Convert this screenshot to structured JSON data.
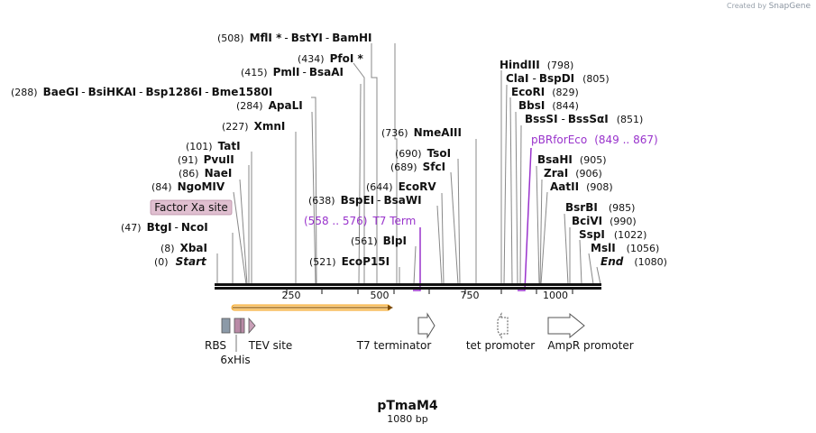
{
  "credit": {
    "prefix": "Created by",
    "brand": "SnapGene"
  },
  "plasmid": {
    "name": "pTmaM4",
    "length_label": "1080 bp",
    "length": 1080
  },
  "ruler": {
    "ticks": [
      "250",
      "500",
      "750",
      "1000"
    ]
  },
  "cut_sites": [
    {
      "num": "(508)",
      "names": [
        "MflI *",
        "BstYI",
        "BamHI"
      ]
    },
    {
      "num": "(434)",
      "names": [
        "PfoI *"
      ]
    },
    {
      "num": "(415)",
      "names": [
        "PmlI",
        "BsaAI"
      ]
    },
    {
      "num": "(288)",
      "names": [
        "BaeGI",
        "BsiHKAI",
        "Bsp1286I",
        "Bme1580I"
      ]
    },
    {
      "num": "(284)",
      "names": [
        "ApaLI"
      ]
    },
    {
      "num": "(227)",
      "names": [
        "XmnI"
      ]
    },
    {
      "num": "(101)",
      "names": [
        "TatI"
      ]
    },
    {
      "num": "(91)",
      "names": [
        "PvuII"
      ]
    },
    {
      "num": "(86)",
      "names": [
        "NaeI"
      ]
    },
    {
      "num": "(84)",
      "names": [
        "NgoMIV"
      ]
    },
    {
      "num": "(47)",
      "names": [
        "BtgI",
        "NcoI"
      ]
    },
    {
      "num": "(8)",
      "names": [
        "XbaI"
      ]
    },
    {
      "num": "(0)",
      "names": [
        "Start"
      ]
    },
    {
      "num": "(736)",
      "names": [
        "NmeAIII"
      ]
    },
    {
      "num": "(690)",
      "names": [
        "TsoI"
      ]
    },
    {
      "num": "(689)",
      "names": [
        "SfcI"
      ]
    },
    {
      "num": "(644)",
      "names": [
        "EcoRV"
      ]
    },
    {
      "num": "(638)",
      "names": [
        "BspEI",
        "BsaWI"
      ]
    },
    {
      "num": "(561)",
      "names": [
        "BlpI"
      ]
    },
    {
      "num": "(521)",
      "names": [
        "EcoP15I"
      ]
    },
    {
      "num": "(798)",
      "names": [
        "HindIII"
      ]
    },
    {
      "num": "(805)",
      "names": [
        "ClaI",
        "BspDI"
      ]
    },
    {
      "num": "(829)",
      "names": [
        "EcoRI"
      ]
    },
    {
      "num": "(844)",
      "names": [
        "BbsI"
      ]
    },
    {
      "num": "(851)",
      "names": [
        "BssSI",
        "BssSαI"
      ]
    },
    {
      "num": "(905)",
      "names": [
        "BsaHI"
      ]
    },
    {
      "num": "(906)",
      "names": [
        "ZraI"
      ]
    },
    {
      "num": "(908)",
      "names": [
        "AatII"
      ]
    },
    {
      "num": "(985)",
      "names": [
        "BsrBI"
      ]
    },
    {
      "num": "(990)",
      "names": [
        "BciVI"
      ]
    },
    {
      "num": "(1022)",
      "names": [
        "SspI"
      ]
    },
    {
      "num": "(1056)",
      "names": [
        "MslI"
      ]
    },
    {
      "num": "(1080)",
      "names": [
        "End"
      ]
    }
  ],
  "primers": [
    {
      "name": "T7 Term",
      "range": "(558 .. 576)"
    },
    {
      "name": "pBRforEco",
      "range": "(849 .. 867)"
    }
  ],
  "features": {
    "factor_xa": "Factor Xa site",
    "rbs": "RBS",
    "his": "6xHis",
    "tev": "TEV site",
    "t7": "T7 terminator",
    "tet": "tet promoter",
    "ampr": "AmpR promoter"
  },
  "colors": {
    "purple": "#9933cc",
    "orange": "#f5a623",
    "rbs_gray": "#8c9aa8",
    "his_pink": "#b98aa6",
    "tev_pink": "#c9a0b8",
    "factor_xa_bg": "#e0bfd0",
    "line_gray": "#888888"
  }
}
